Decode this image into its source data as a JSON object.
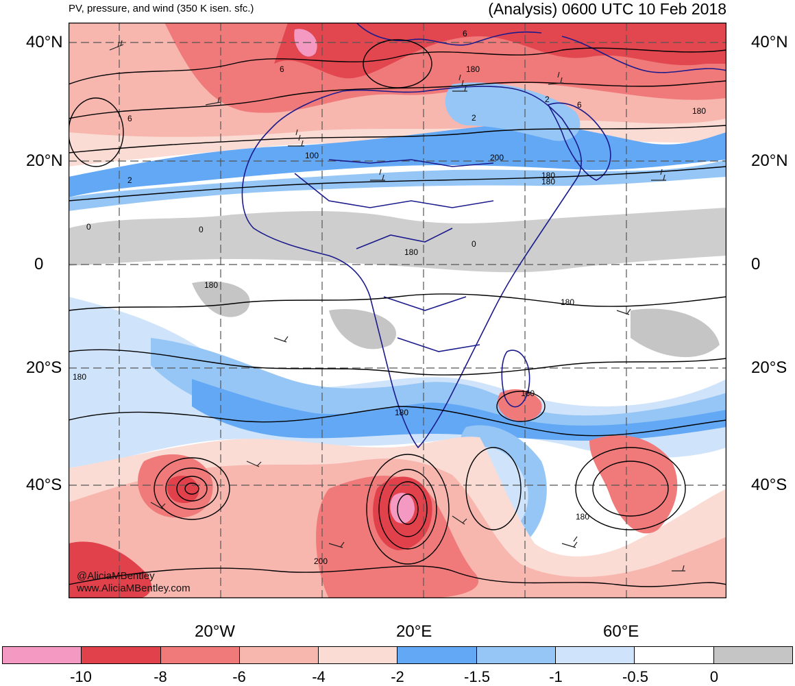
{
  "header": {
    "title_left": "PV, pressure, and wind (350 K isen. sfc.)",
    "title_right": "(Analysis) 0600 UTC 10 Feb 2018"
  },
  "map": {
    "lat_labels": [
      "40°N",
      "20°N",
      "0",
      "20°S",
      "40°S"
    ],
    "lon_labels": [
      "20°W",
      "20°E",
      "60°E"
    ],
    "contour_labels": [
      "6",
      "6",
      "2",
      "2",
      "6",
      "180",
      "2",
      "6",
      "180",
      "180",
      "100",
      "200",
      "180",
      "0",
      "0",
      "0",
      "180",
      "180",
      "180",
      "180",
      "160",
      "180",
      "180",
      "200"
    ],
    "watermark_line1": "@AliciaMBentley",
    "watermark_line2": "www.AliciaMBentley.com",
    "colors": {
      "pink": "#f49ac2",
      "dark_red": "#e0414a",
      "red": "#f07a7a",
      "light_red": "#f7b6ae",
      "pale_red": "#fadcd5",
      "blue": "#62a8f5",
      "mid_blue": "#96c6f6",
      "light_blue": "#cfe4fb",
      "white": "#ffffff",
      "gray": "#c5c5c5",
      "boundary": "#1a1a8c",
      "contour": "#000000"
    }
  },
  "colorbar": {
    "labels": [
      "-10",
      "-8",
      "-6",
      "-4",
      "-2",
      "-1.5",
      "-1",
      "-0.5",
      "0"
    ],
    "colors": [
      "#f49ac2",
      "#e0414a",
      "#f07a7a",
      "#f7b6ae",
      "#fadcd5",
      "#62a8f5",
      "#96c6f6",
      "#cfe4fb",
      "#ffffff",
      "#c5c5c5"
    ]
  }
}
